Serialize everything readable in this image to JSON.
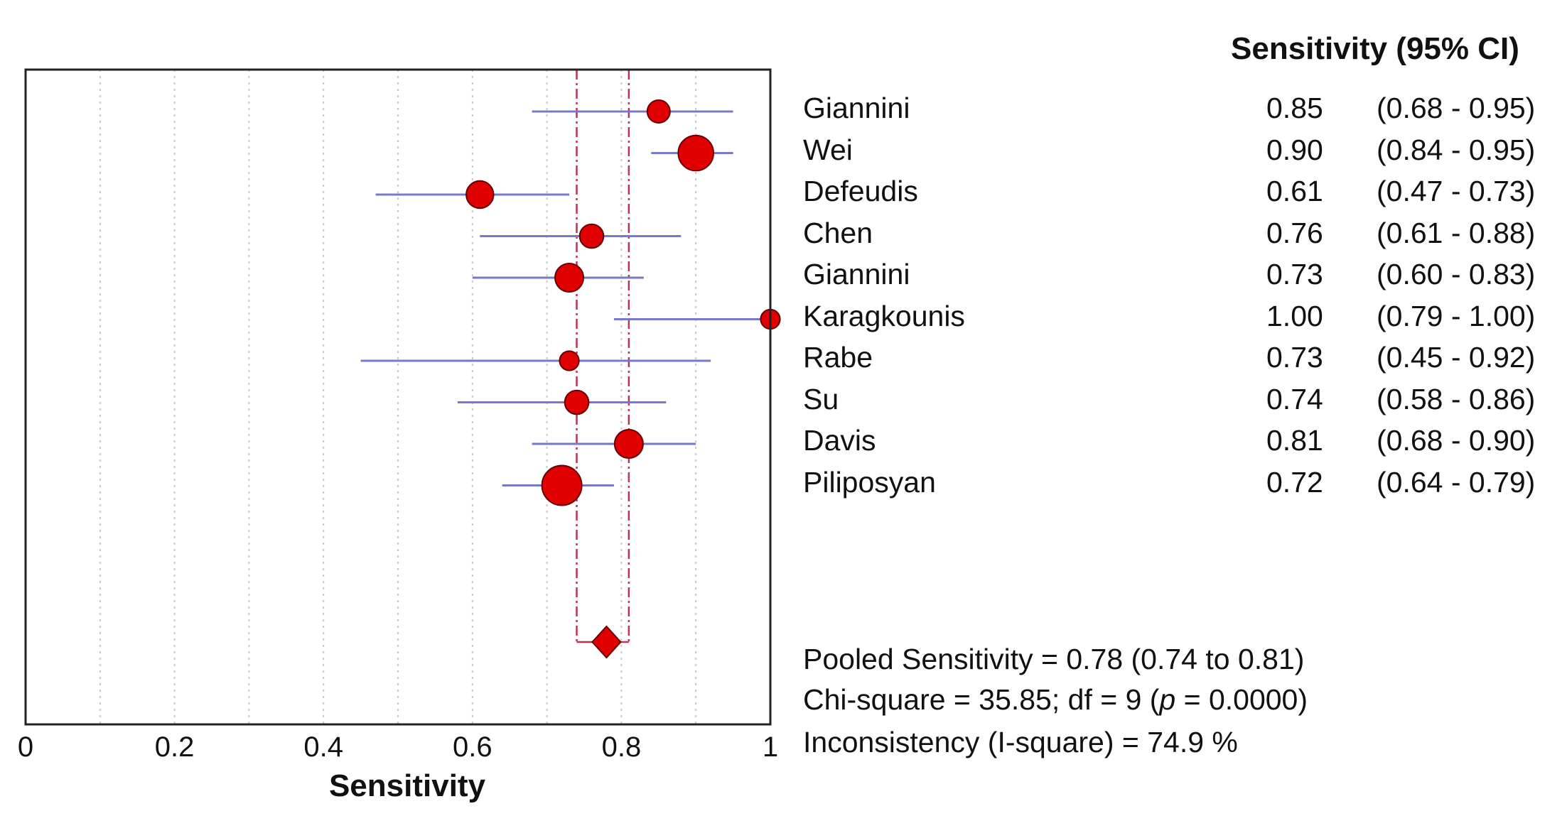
{
  "chart_data": {
    "type": "forest",
    "xlabel": "Sensitivity",
    "xlim": [
      0,
      1
    ],
    "xticks": [
      "0",
      "0.2",
      "0.4",
      "0.6",
      "0.8",
      "1"
    ],
    "grid": "vertical dotted",
    "header": "Sensitivity (95% CI)",
    "marker_color": "#e00000",
    "ci_line_color": "#7777cc",
    "pooled_line_color": "#bb3355",
    "studies": [
      {
        "name": "Giannini",
        "value": 0.85,
        "lower": 0.68,
        "upper": 0.95,
        "value_label": "0.85",
        "ci_label": "(0.68 - 0.95)",
        "weight": 1.0
      },
      {
        "name": "Wei",
        "value": 0.9,
        "lower": 0.84,
        "upper": 0.95,
        "value_label": "0.90",
        "ci_label": "(0.84 - 0.95)",
        "weight": 1.55
      },
      {
        "name": "Defeudis",
        "value": 0.61,
        "lower": 0.47,
        "upper": 0.73,
        "value_label": "0.61",
        "ci_label": "(0.47 - 0.73)",
        "weight": 1.2
      },
      {
        "name": "Chen",
        "value": 0.76,
        "lower": 0.61,
        "upper": 0.88,
        "value_label": "0.76",
        "ci_label": "(0.61 - 0.88)",
        "weight": 1.05
      },
      {
        "name": "Giannini",
        "value": 0.73,
        "lower": 0.6,
        "upper": 0.83,
        "value_label": "0.73",
        "ci_label": "(0.60 - 0.83)",
        "weight": 1.25
      },
      {
        "name": "Karagkounis",
        "value": 1.0,
        "lower": 0.79,
        "upper": 1.0,
        "value_label": "1.00",
        "ci_label": "(0.79 - 1.00)",
        "weight": 0.85
      },
      {
        "name": "Rabe",
        "value": 0.73,
        "lower": 0.45,
        "upper": 0.92,
        "value_label": "0.73",
        "ci_label": "(0.45 - 0.92)",
        "weight": 0.85
      },
      {
        "name": "Su",
        "value": 0.74,
        "lower": 0.58,
        "upper": 0.86,
        "value_label": "0.74",
        "ci_label": "(0.58 - 0.86)",
        "weight": 1.05
      },
      {
        "name": "Davis",
        "value": 0.81,
        "lower": 0.68,
        "upper": 0.9,
        "value_label": "0.81",
        "ci_label": "(0.68 - 0.90)",
        "weight": 1.25
      },
      {
        "name": "Piliposyan",
        "value": 0.72,
        "lower": 0.64,
        "upper": 0.79,
        "value_label": "0.72",
        "ci_label": "(0.64 - 0.79)",
        "weight": 1.75
      }
    ],
    "pooled": {
      "value": 0.78,
      "lower": 0.74,
      "upper": 0.81
    },
    "stats": {
      "pooled_text": "Pooled Sensitivity = 0.78 (0.74 to 0.81)",
      "chi_prefix": "Chi-square = 35.85; df =  9 (",
      "chi_p": "p",
      "chi_suffix": " = 0.0000)",
      "inconsistency_text": "Inconsistency (I-square) = 74.9 %"
    }
  }
}
